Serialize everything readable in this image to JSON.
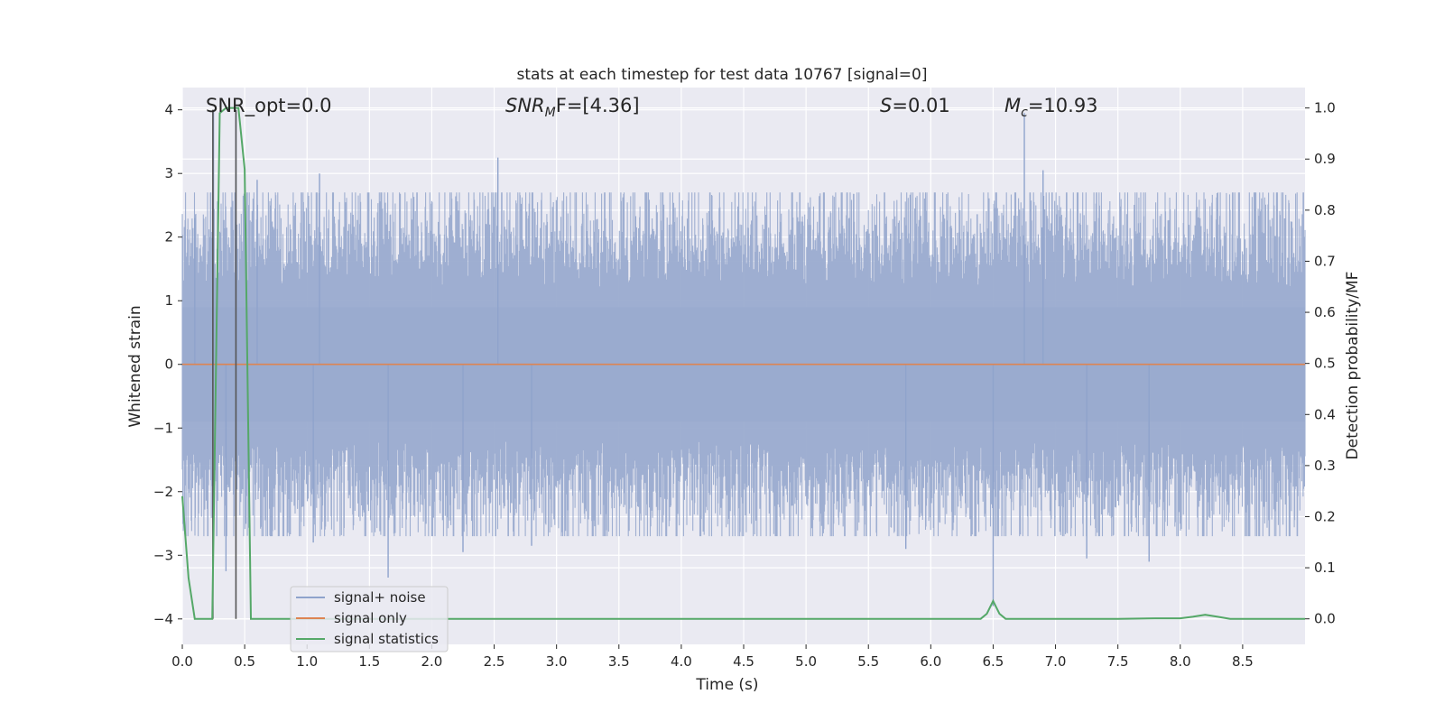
{
  "chart_data": {
    "type": "line",
    "title": "stats at each timestep for test data 10767 [signal=0]",
    "xlabel": "Time (s)",
    "ylabel_left": "Whitened strain",
    "ylabel_right": "Detection probability/MF",
    "xlim": [
      0.0,
      9.0
    ],
    "ylim_left": [
      -4.4,
      4.35
    ],
    "ylim_right": [
      -0.05,
      1.04
    ],
    "xticks": [
      "0.0",
      "0.5",
      "1.0",
      "1.5",
      "2.0",
      "2.5",
      "3.0",
      "3.5",
      "4.0",
      "4.5",
      "5.0",
      "5.5",
      "6.0",
      "6.5",
      "7.0",
      "7.5",
      "8.0",
      "8.5"
    ],
    "yticks_left": [
      "4",
      "3",
      "2",
      "1",
      "0",
      "−1",
      "−2",
      "−3",
      "−4"
    ],
    "yticks_right": [
      "1.0",
      "0.9",
      "0.8",
      "0.7",
      "0.6",
      "0.5",
      "0.4",
      "0.3",
      "0.2",
      "0.1",
      "0.0"
    ],
    "grid": true,
    "legend_position": "lower-left",
    "annotations": {
      "snr_opt": "SNR_opt=0.0",
      "snr_mf_name": "SNR",
      "snr_mf_sub": "M",
      "snr_mf_rest": "F=[4.36]",
      "s_name": "S",
      "s_rest": "=0.01",
      "mc_name": "M",
      "mc_sub": "c",
      "mc_rest": "=10.93"
    },
    "series": [
      {
        "name": "signal+ noise",
        "color": "#8fa3cc",
        "axis": "left",
        "description_range": [
          -3.35,
          4.0
        ],
        "spikes": [
          {
            "x": 0.25,
            "y": 4.0
          },
          {
            "x": 0.43,
            "y": 4.0
          },
          {
            "x": 0.1,
            "y": 2.3
          },
          {
            "x": 0.6,
            "y": 2.9
          },
          {
            "x": 1.1,
            "y": 3.0
          },
          {
            "x": 2.53,
            "y": 3.25
          },
          {
            "x": 6.75,
            "y": 3.95
          },
          {
            "x": 6.9,
            "y": 3.05
          },
          {
            "x": 0.35,
            "y": -3.25
          },
          {
            "x": 1.65,
            "y": -3.35
          },
          {
            "x": 2.25,
            "y": -2.95
          },
          {
            "x": 6.5,
            "y": -3.8
          },
          {
            "x": 7.75,
            "y": -3.1
          },
          {
            "x": 7.25,
            "y": -3.05
          },
          {
            "x": 1.05,
            "y": -2.8
          },
          {
            "x": 2.8,
            "y": -2.85
          },
          {
            "x": 5.8,
            "y": -2.9
          }
        ]
      },
      {
        "name": "signal only",
        "color": "#dd8452",
        "axis": "left",
        "x": [
          0.0,
          9.0
        ],
        "y": [
          0.0,
          0.0
        ]
      },
      {
        "name": "signal statistics",
        "color": "#55a868",
        "axis": "right",
        "x": [
          0.0,
          0.05,
          0.1,
          0.15,
          0.2,
          0.24,
          0.3,
          0.35,
          0.4,
          0.45,
          0.5,
          0.55,
          0.6,
          1.0,
          2.0,
          3.0,
          4.0,
          5.0,
          6.0,
          6.4,
          6.45,
          6.5,
          6.55,
          6.6,
          6.7,
          7.0,
          7.5,
          7.8,
          8.0,
          8.1,
          8.2,
          8.3,
          8.4,
          9.0
        ],
        "y": [
          0.24,
          0.08,
          0.0,
          0.0,
          0.0,
          0.0,
          0.99,
          1.0,
          1.0,
          1.0,
          0.88,
          0.0,
          0.0,
          0.0,
          0.0,
          0.0,
          0.0,
          0.0,
          0.0,
          0.0,
          0.01,
          0.035,
          0.01,
          0.0,
          0.0,
          0.0,
          0.0,
          0.001,
          0.001,
          0.004,
          0.008,
          0.004,
          0.0,
          0.0
        ]
      }
    ],
    "markers": [
      {
        "x": 0.245,
        "y_from": -4.0,
        "y_to": 4.0,
        "color": "#555555"
      },
      {
        "x": 0.43,
        "y_from": -4.0,
        "y_to": 4.0,
        "color": "#555555"
      }
    ],
    "colors": {
      "plot_background": "#eaeaf2",
      "grid": "#ffffff",
      "noise_fill": "#9aabcf",
      "text": "#262626"
    }
  }
}
